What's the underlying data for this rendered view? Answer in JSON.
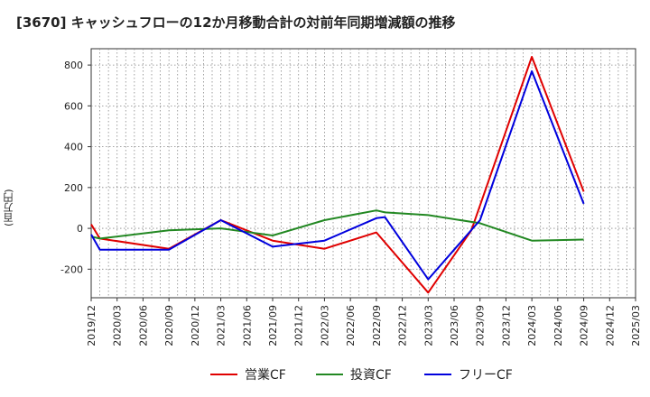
{
  "title": "[3670]  キャッシュフローの12か月移動合計の対前年同期増減額の推移",
  "ylabel": "(百万円)",
  "chart_data": {
    "type": "line",
    "ylim": [
      -340,
      880
    ],
    "yticks": [
      -200,
      0,
      200,
      400,
      600,
      800
    ],
    "x_categories": [
      "2019/12",
      "2020/03",
      "2020/06",
      "2020/09",
      "2020/12",
      "2021/03",
      "2021/06",
      "2021/09",
      "2021/12",
      "2022/03",
      "2022/06",
      "2022/09",
      "2022/12",
      "2023/03",
      "2023/06",
      "2023/09",
      "2023/12",
      "2024/03",
      "2024/06",
      "2024/09",
      "2024/12",
      "2025/03"
    ],
    "grid": true,
    "legend_position": "bottom",
    "series": [
      {
        "name": "営業CF",
        "color": "#e00000",
        "points": [
          [
            "2019/12",
            20
          ],
          [
            "2020/01",
            -50
          ],
          [
            "2020/09",
            -100
          ],
          [
            "2021/03",
            40
          ],
          [
            "2021/09",
            -60
          ],
          [
            "2022/03",
            -100
          ],
          [
            "2022/09",
            -20
          ],
          [
            "2023/03",
            -315
          ],
          [
            "2023/08",
            -10
          ],
          [
            "2024/03",
            840
          ],
          [
            "2024/09",
            180
          ]
        ]
      },
      {
        "name": "投資CF",
        "color": "#228822",
        "points": [
          [
            "2019/12",
            -40
          ],
          [
            "2020/01",
            -50
          ],
          [
            "2020/09",
            -10
          ],
          [
            "2021/03",
            0
          ],
          [
            "2021/09",
            -35
          ],
          [
            "2022/03",
            40
          ],
          [
            "2022/09",
            88
          ],
          [
            "2022/10",
            78
          ],
          [
            "2023/03",
            65
          ],
          [
            "2023/09",
            25
          ],
          [
            "2024/03",
            -60
          ],
          [
            "2024/09",
            -55
          ]
        ]
      },
      {
        "name": "フリーCF",
        "color": "#0000dd",
        "points": [
          [
            "2019/12",
            -30
          ],
          [
            "2020/01",
            -105
          ],
          [
            "2020/09",
            -105
          ],
          [
            "2021/03",
            40
          ],
          [
            "2021/09",
            -90
          ],
          [
            "2022/03",
            -60
          ],
          [
            "2022/09",
            50
          ],
          [
            "2022/10",
            55
          ],
          [
            "2023/03",
            -250
          ],
          [
            "2023/09",
            40
          ],
          [
            "2024/03",
            770
          ],
          [
            "2024/09",
            120
          ]
        ]
      }
    ]
  }
}
